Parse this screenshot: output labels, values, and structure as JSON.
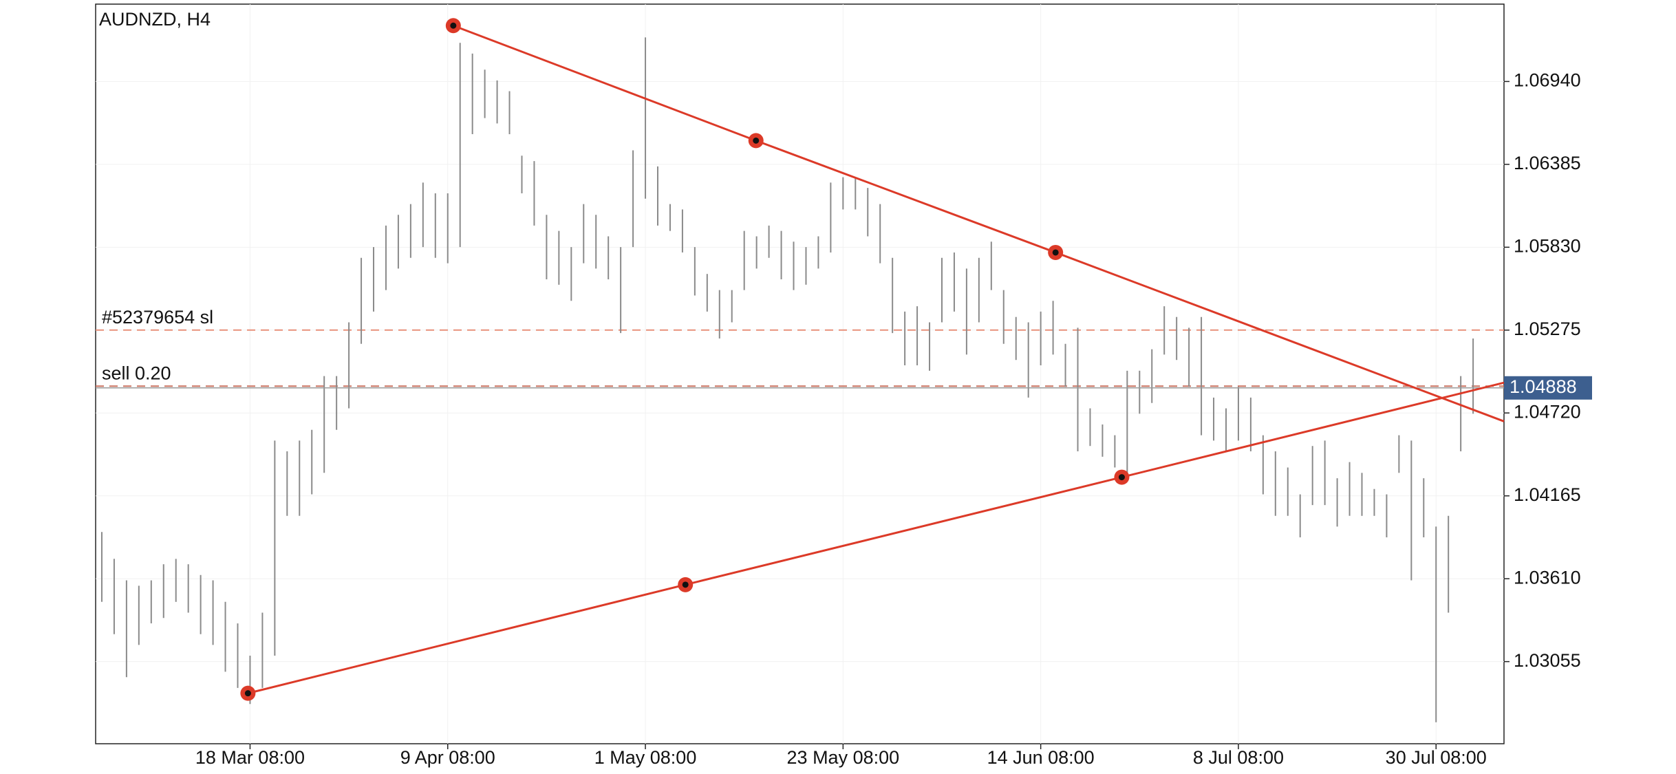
{
  "chart_data": {
    "type": "hilo",
    "title": "AUDNZD, H4",
    "categories": [
      null,
      null,
      null,
      null,
      null,
      null,
      null,
      null,
      null,
      null,
      null,
      null,
      "18 Mar 08:00",
      null,
      null,
      null,
      null,
      null,
      null,
      null,
      null,
      null,
      null,
      null,
      null,
      null,
      null,
      null,
      "9 Apr 08:00",
      null,
      null,
      null,
      null,
      null,
      null,
      null,
      null,
      null,
      null,
      null,
      null,
      null,
      null,
      null,
      "1 May 08:00",
      null,
      null,
      null,
      null,
      null,
      null,
      null,
      null,
      null,
      null,
      null,
      null,
      null,
      null,
      null,
      "23 May 08:00",
      null,
      null,
      null,
      null,
      null,
      null,
      null,
      null,
      null,
      null,
      null,
      null,
      null,
      null,
      null,
      "14 Jun 08:00",
      null,
      null,
      null,
      null,
      null,
      null,
      null,
      null,
      null,
      null,
      null,
      null,
      null,
      null,
      null,
      "8 Jul 08:00",
      null,
      null,
      null,
      null,
      null,
      null,
      null,
      null,
      null,
      null,
      null,
      null,
      null,
      null,
      null,
      "30 Jul 08:00",
      null,
      null,
      null
    ],
    "series": [
      {
        "color": "#8a8a8a",
        "high": [
          1.03923,
          1.03743,
          1.03599,
          1.03563,
          1.03599,
          1.03707,
          1.03743,
          1.03707,
          1.03635,
          1.03599,
          1.03455,
          1.03311,
          1.03095,
          1.03383,
          1.04535,
          1.04463,
          1.04535,
          1.04607,
          1.04967,
          1.04967,
          1.05327,
          1.05759,
          1.05831,
          1.05975,
          1.06047,
          1.06119,
          1.06263,
          1.06191,
          1.06191,
          1.07199,
          1.07127,
          1.07019,
          1.06947,
          1.06875,
          1.06443,
          1.06407,
          1.06047,
          1.05939,
          1.05831,
          1.06119,
          1.06047,
          1.05903,
          1.05831,
          1.06479,
          1.07235,
          1.06371,
          1.06119,
          1.06083,
          1.05831,
          1.05651,
          1.05543,
          1.05543,
          1.05939,
          1.05903,
          1.05975,
          1.05939,
          1.05867,
          1.05831,
          1.05903,
          1.06263,
          1.06299,
          1.06299,
          1.06227,
          1.06119,
          1.05759,
          1.05399,
          1.05435,
          1.05327,
          1.05759,
          1.05795,
          1.05687,
          1.05759,
          1.05867,
          1.05543,
          1.05363,
          1.05327,
          1.05399,
          1.05471,
          1.05183,
          1.05291,
          1.04751,
          1.04643,
          1.04571,
          1.05003,
          1.05003,
          1.05147,
          1.05435,
          1.05363,
          1.05291,
          1.05363,
          1.04823,
          1.04751,
          1.04895,
          1.04823,
          1.04571,
          1.04463,
          1.04355,
          1.04175,
          1.04499,
          1.04535,
          1.04283,
          1.04391,
          1.04319,
          1.04211,
          1.04175,
          1.04571,
          1.04535,
          1.04283,
          1.03959,
          1.04031,
          1.04967,
          1.05219
        ],
        "low": [
          1.03455,
          1.03239,
          1.02951,
          1.03167,
          1.03311,
          1.03347,
          1.03455,
          1.03383,
          1.03239,
          1.03167,
          1.02987,
          1.02879,
          1.02771,
          1.02879,
          1.03095,
          1.04031,
          1.04031,
          1.04175,
          1.04319,
          1.04607,
          1.04751,
          1.05183,
          1.05399,
          1.05543,
          1.05687,
          1.05759,
          1.05831,
          1.05759,
          1.05723,
          1.05831,
          1.06587,
          1.06695,
          1.06659,
          1.06587,
          1.06191,
          1.05975,
          1.05615,
          1.05579,
          1.05471,
          1.05723,
          1.05687,
          1.05615,
          1.05255,
          1.05831,
          1.06155,
          1.05975,
          1.05939,
          1.05795,
          1.05507,
          1.05399,
          1.05219,
          1.05327,
          1.05543,
          1.05687,
          1.05759,
          1.05615,
          1.05543,
          1.05579,
          1.05687,
          1.05795,
          1.06083,
          1.06083,
          1.05903,
          1.05723,
          1.05255,
          1.05039,
          1.05039,
          1.05003,
          1.05327,
          1.05399,
          1.05111,
          1.05327,
          1.05543,
          1.05183,
          1.05075,
          1.04823,
          1.05039,
          1.05111,
          1.04895,
          1.04463,
          1.04499,
          1.04427,
          1.04355,
          1.04319,
          1.04715,
          1.04787,
          1.05111,
          1.05075,
          1.04895,
          1.04571,
          1.04535,
          1.04463,
          1.04535,
          1.04463,
          1.04175,
          1.04031,
          1.04031,
          1.03887,
          1.04103,
          1.04103,
          1.03959,
          1.04031,
          1.04031,
          1.04031,
          1.03887,
          1.04319,
          1.03599,
          1.03887,
          1.02649,
          1.03383,
          1.04463,
          1.04715
        ]
      }
    ],
    "xlim": [
      -0.5,
      113.5
    ],
    "ylim": [
      1.02505,
      1.07458
    ],
    "yticks": [
      {
        "value": 1.0694,
        "label": "1.06940"
      },
      1.06385,
      {
        "value": 1.0583,
        "label": "1.05830"
      },
      1.05275,
      {
        "value": 1.0472,
        "label": "1.04720"
      },
      1.04165,
      {
        "value": 1.0361,
        "label": "1.03610"
      },
      1.03055
    ],
    "grid": true,
    "trendlines": [
      {
        "color": "#dc3a28",
        "x": [
          28.45,
          52.95,
          77.2
        ],
        "y": [
          1.07314,
          1.06544,
          1.05795
        ]
      },
      {
        "color": "#dc3a28",
        "x": [
          11.83,
          47.24,
          82.56
        ],
        "y": [
          1.02843,
          1.0357,
          1.0429
        ]
      }
    ],
    "levels": [
      {
        "label": "#52379654 sl",
        "value": 1.05275,
        "color": "#e8907a"
      },
      {
        "label": "sell 0.20",
        "value": 1.049,
        "color": "#c8705e"
      }
    ],
    "last_price": 1.04888,
    "last_price_color": "#3d5f8f"
  }
}
